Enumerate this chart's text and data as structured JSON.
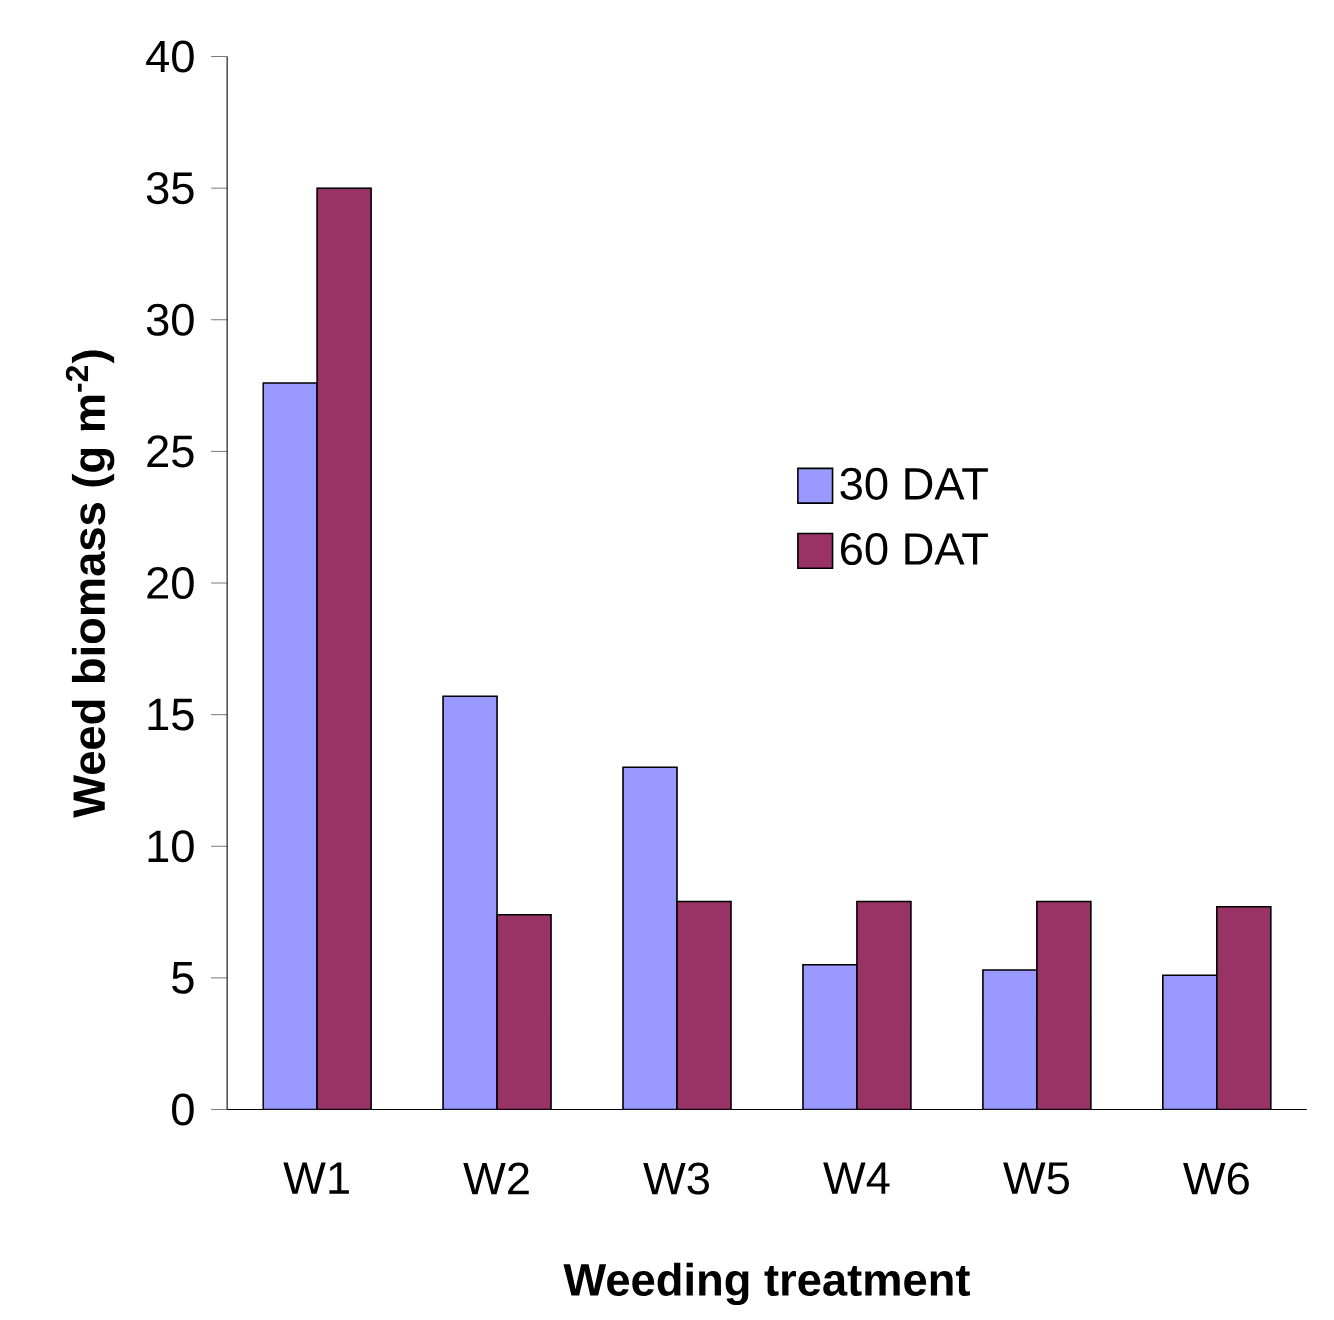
{
  "chart_data": {
    "type": "bar",
    "xlabel": "Weeding treatment",
    "ylabel": "Weed biomass (g m$^{-2}$)",
    "categories": [
      "W1",
      "W2",
      "W3",
      "W4",
      "W5",
      "W6"
    ],
    "series": [
      {
        "name": "30 DAT",
        "color": "#9999ff",
        "values": [
          27.6,
          15.7,
          13.0,
          5.5,
          5.3,
          5.1
        ]
      },
      {
        "name": "60 DAT",
        "color": "#993366",
        "values": [
          35.0,
          7.4,
          7.9,
          7.9,
          7.9,
          7.7
        ]
      }
    ],
    "ylim": [
      0,
      40
    ],
    "yticks": [
      0,
      5,
      10,
      15,
      20,
      25,
      30,
      35,
      40
    ],
    "grid": false,
    "legend": "center"
  }
}
